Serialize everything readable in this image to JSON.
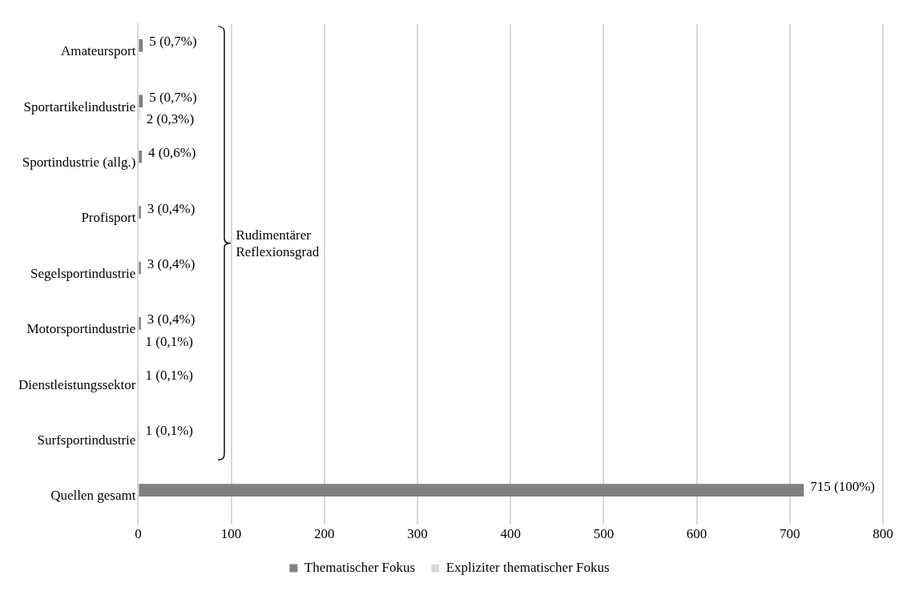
{
  "chart_data": {
    "type": "bar",
    "orientation": "horizontal",
    "categories": [
      "Amateursport",
      "Sportartikelindustrie",
      "Sportindustrie (allg.)",
      "Profisport",
      "Segelsportindustrie",
      "Motorsportindustrie",
      "Dienstleistungssektor",
      "Surfsportindustrie",
      "Quellen gesamt"
    ],
    "series": [
      {
        "name": "Thematischer Fokus",
        "color": "#808080",
        "values": [
          5,
          5,
          4,
          3,
          3,
          3,
          1,
          1,
          715
        ],
        "value_labels": [
          "5 (0,7%)",
          "5 (0,7%)",
          "4 (0,6%)",
          "3 (0,4%)",
          "3 (0,4%)",
          "3 (0,4%)",
          "1 (0,1%)",
          "1 (0,1%)",
          "715 (100%)"
        ]
      },
      {
        "name": "Expliziter thematischer Fokus",
        "color": "#d9d9d9",
        "values": [
          null,
          2,
          null,
          null,
          null,
          1,
          null,
          null,
          null
        ],
        "value_labels": [
          null,
          "2 (0,3%)",
          null,
          null,
          null,
          "1 (0,1%)",
          null,
          null,
          null
        ]
      }
    ],
    "xlim": [
      0,
      800
    ],
    "xticks": [
      0,
      100,
      200,
      300,
      400,
      500,
      600,
      700,
      800
    ],
    "grid": "x",
    "legend": "bottom",
    "annotations": [
      "Rudimentärer Reflexionsgrad"
    ]
  }
}
